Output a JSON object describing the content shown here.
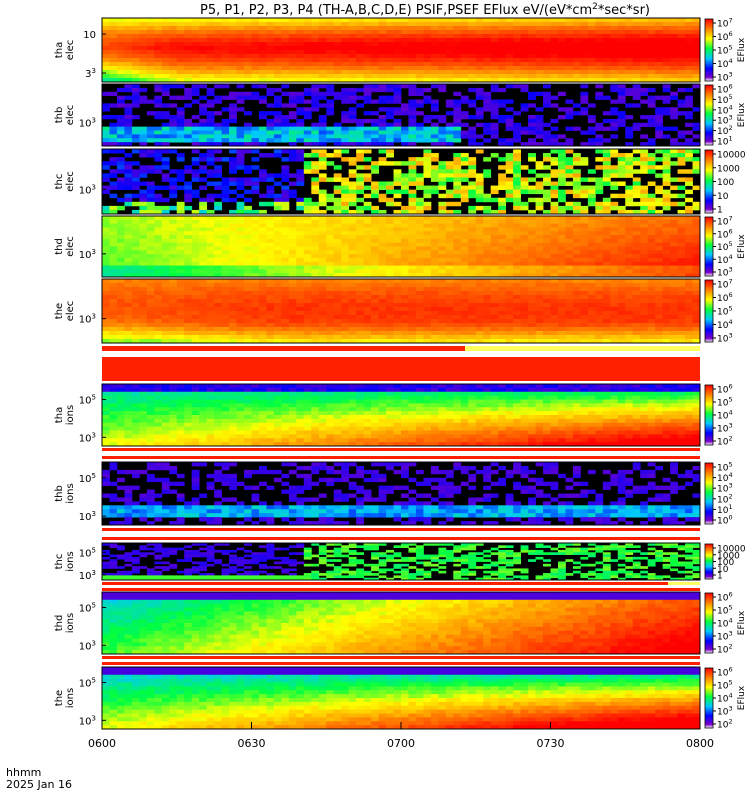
{
  "title": "P5, P1, P2, P3, P4 (TH-A,B,C,D,E) PSIF,PSEF EFlux eV/(eV*cm",
  "title_sup": "2",
  "title_tail": "*sec*sr)",
  "footer": {
    "line1": "hhmm",
    "line2": "2025 Jan 16"
  },
  "colors": {
    "hot": "#ff2000",
    "white_band": "#ffffff",
    "text": "#000000"
  },
  "chart_data": {
    "type": "heatmap",
    "x_axis": {
      "ticks": [
        "0600",
        "0630",
        "0700",
        "0730",
        "0800"
      ],
      "range": [
        "06:00",
        "08:00"
      ]
    },
    "colorbar_label": "EFlux",
    "panels": [
      {
        "probe": "tha",
        "species": "elec",
        "yticks": [
          "10",
          "3"
        ],
        "yexp": [
          "",
          "3"
        ],
        "cbticks": [
          "10^7",
          "10^6",
          "10^5",
          "10^4",
          "10^3"
        ],
        "show_cblabel": true,
        "style": "elec_hot"
      },
      {
        "probe": "thb",
        "species": "elec",
        "yticks": [
          "10"
        ],
        "yexp": [
          "3"
        ],
        "cbticks": [
          "10^6",
          "10^5",
          "10^4",
          "10^3",
          "10^2",
          "10^1"
        ],
        "show_cblabel": true,
        "style": "elec_sparse"
      },
      {
        "probe": "thc",
        "species": "elec",
        "yticks": [
          "10"
        ],
        "yexp": [
          "3"
        ],
        "cbticks": [
          "10000",
          "1000",
          "100",
          "10",
          "1"
        ],
        "show_cblabel": false,
        "style": "elec_noise"
      },
      {
        "probe": "thd",
        "species": "elec",
        "yticks": [
          "10"
        ],
        "yexp": [
          "3"
        ],
        "cbticks": [
          "10^7",
          "10^6",
          "10^5",
          "10^4",
          "10^3"
        ],
        "show_cblabel": true,
        "style": "elec_green"
      },
      {
        "probe": "the",
        "species": "elec",
        "yticks": [
          "10"
        ],
        "yexp": [
          "3"
        ],
        "cbticks": [
          "10^7",
          "10^6",
          "10^5",
          "10^4",
          "10^3"
        ],
        "show_cblabel": false,
        "style": "elec_hot2"
      },
      {
        "probe": "tha",
        "species": "ions",
        "yticks": [
          "10",
          "10"
        ],
        "yexp": [
          "5",
          "3"
        ],
        "cbticks": [
          "10^6",
          "10^5",
          "10^4",
          "10^3",
          "10^2"
        ],
        "show_cblabel": false,
        "style": "ion_a"
      },
      {
        "probe": "thb",
        "species": "ions",
        "yticks": [
          "10",
          "10"
        ],
        "yexp": [
          "5",
          "3"
        ],
        "cbticks": [
          "10^5",
          "10^4",
          "10^3",
          "10^2",
          "10^1",
          "10^0"
        ],
        "show_cblabel": false,
        "style": "ion_b"
      },
      {
        "probe": "thc",
        "species": "ions",
        "yticks": [
          "10",
          "10"
        ],
        "yexp": [
          "5",
          "3"
        ],
        "cbticks": [
          "10000",
          "1000",
          "100",
          "10",
          "1"
        ],
        "show_cblabel": false,
        "style": "ion_c"
      },
      {
        "probe": "thd",
        "species": "ions",
        "yticks": [
          "10",
          "10"
        ],
        "yexp": [
          "5",
          "3"
        ],
        "cbticks": [
          "10^6",
          "10^5",
          "10^4",
          "10^3",
          "10^2"
        ],
        "show_cblabel": true,
        "style": "ion_d"
      },
      {
        "probe": "the",
        "species": "ions",
        "yticks": [
          "10",
          "10"
        ],
        "yexp": [
          "5",
          "3"
        ],
        "cbticks": [
          "10^6",
          "10^5",
          "10^4",
          "10^3",
          "10^2"
        ],
        "show_cblabel": true,
        "style": "ion_e"
      }
    ]
  }
}
